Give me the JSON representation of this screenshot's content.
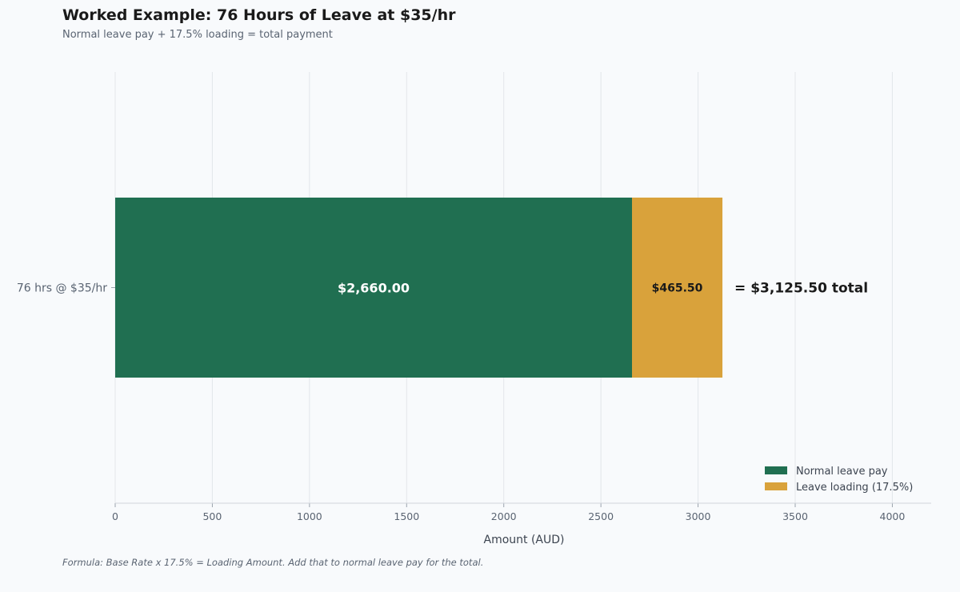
{
  "header": {
    "title": "Worked Example: 76 Hours of Leave at $35/hr",
    "subtitle": "Normal leave pay + 17.5% loading = total payment"
  },
  "footnote": "Formula: Base Rate x 17.5% = Loading Amount. Add that to normal leave pay for the total.",
  "chart_data": {
    "type": "bar",
    "orientation": "horizontal",
    "stacked": true,
    "title": "Worked Example: 76 Hours of Leave at $35/hr",
    "subtitle": "Normal leave pay + 17.5% loading = total payment",
    "categories": [
      "76 hrs @ $35/hr"
    ],
    "series": [
      {
        "name": "Normal leave pay",
        "values": [
          2660
        ],
        "color": "#206f51",
        "labels": [
          "$2,660.00"
        ],
        "label_color": "#ffffff"
      },
      {
        "name": "Leave loading (17.5%)",
        "values": [
          465.5
        ],
        "color": "#d9a23b",
        "labels": [
          "$465.50"
        ],
        "label_color": "#1a1a1a"
      }
    ],
    "total_labels": [
      "= $3,125.50 total"
    ],
    "xlabel": "Amount (AUD)",
    "ylabel": "",
    "xlim": [
      0,
      4200
    ],
    "xticks": [
      0,
      500,
      1000,
      1500,
      2000,
      2500,
      3000,
      3500,
      4000
    ],
    "grid": "vertical",
    "legend": {
      "position": "bottom-right",
      "entries": [
        "Normal leave pay",
        "Leave loading (17.5%)"
      ]
    }
  }
}
